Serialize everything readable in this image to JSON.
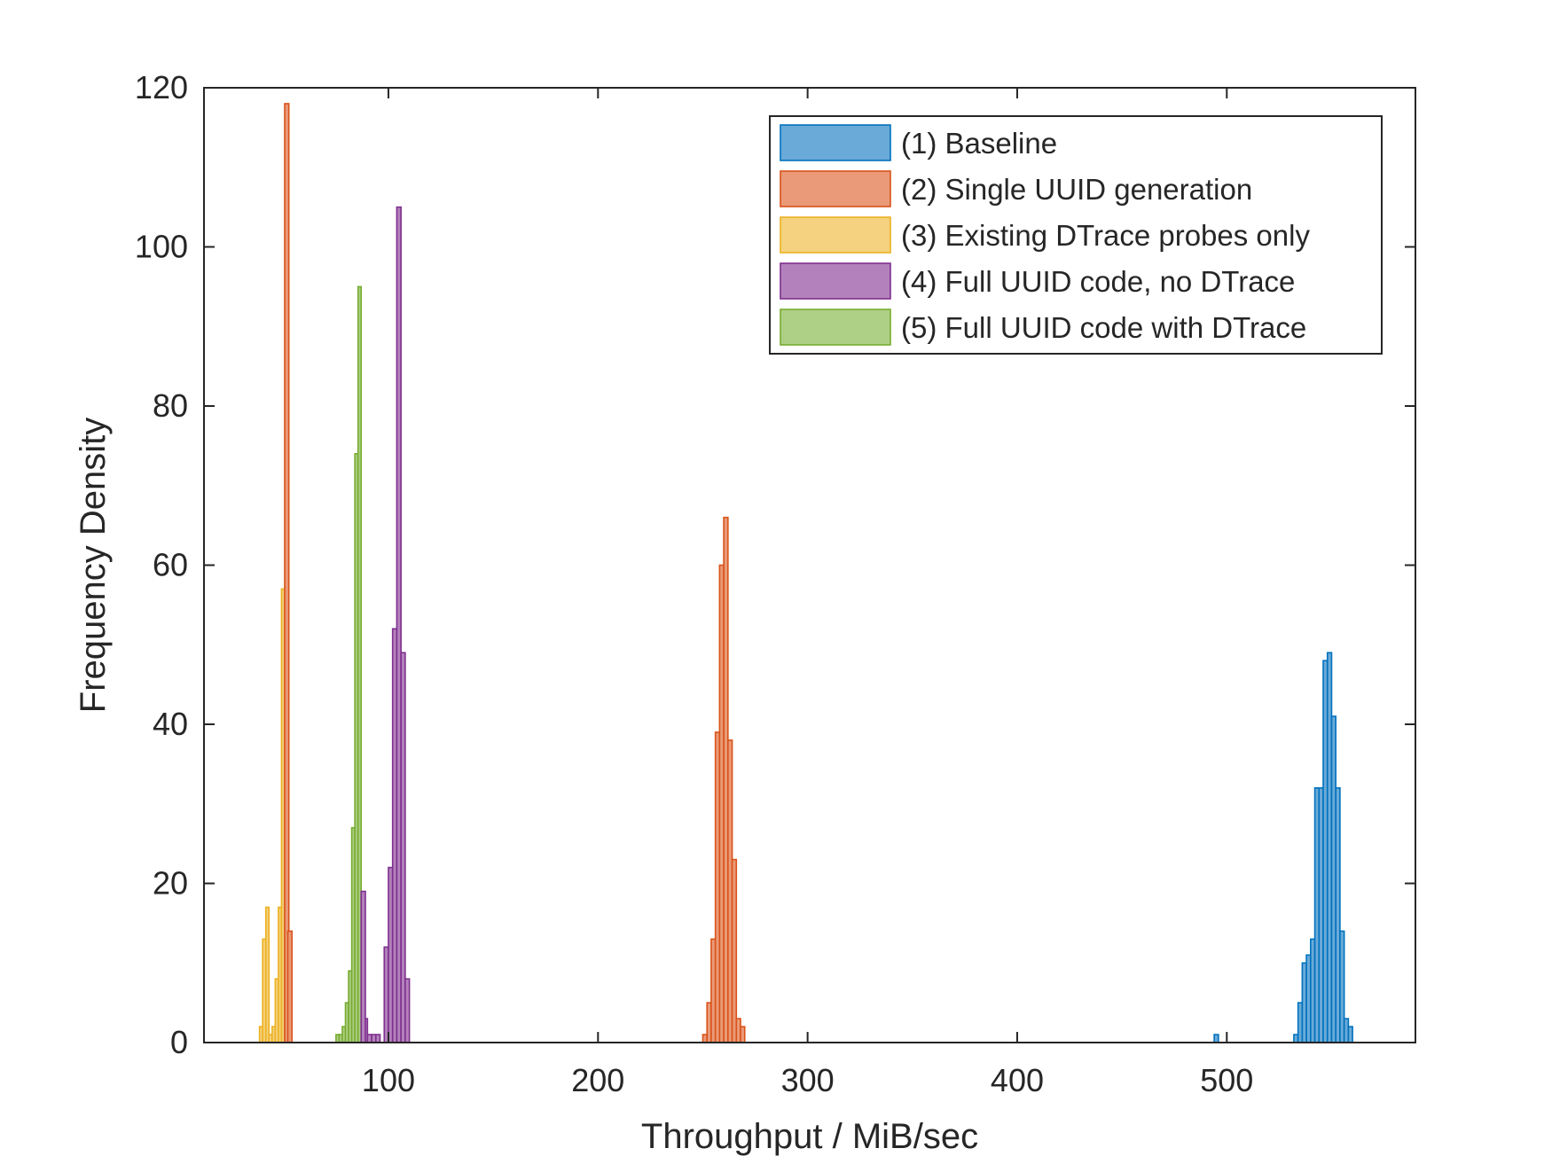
{
  "chart_data": {
    "type": "histogram",
    "title": "",
    "xlabel": "Throughput / MiB/sec",
    "ylabel": "Frequency Density",
    "xlim": [
      12,
      590
    ],
    "ylim": [
      0,
      120
    ],
    "x_ticks": [
      100,
      200,
      300,
      400,
      500
    ],
    "y_ticks": [
      0,
      20,
      40,
      60,
      80,
      100,
      120
    ],
    "grid": false,
    "legend_position": "top-right",
    "series": [
      {
        "name": "(1) Baseline",
        "edge_color": "#0072BD",
        "face_color": "#6AAAD8",
        "bin_width": 2,
        "x": [
          494,
          496,
          498,
          500,
          502,
          504,
          506,
          508,
          510,
          512,
          514,
          516,
          518,
          520,
          522,
          524,
          526,
          528,
          530,
          532,
          534,
          536,
          538,
          540,
          542,
          544,
          546,
          548,
          550,
          552,
          554,
          556,
          558,
          560,
          562,
          564,
          566
        ],
        "values": [
          1,
          0,
          0,
          0,
          0,
          0,
          0,
          0,
          0,
          0,
          0,
          0,
          0,
          0,
          0,
          0,
          0,
          0,
          0,
          1,
          5,
          10,
          11,
          13,
          32,
          32,
          48,
          49,
          41,
          32,
          14,
          3,
          2,
          0,
          0,
          0,
          0
        ]
      },
      {
        "name": "(2) Single UUID generation",
        "edge_color": "#D95319",
        "face_color": "#EA9A78",
        "bin_width": 2,
        "x": [
          250,
          252,
          254,
          256,
          258,
          260,
          262,
          264,
          266,
          268
        ],
        "values": [
          1,
          5,
          13,
          39,
          60,
          66,
          38,
          23,
          3,
          2
        ]
      },
      {
        "name": "(3) Existing DTrace probes only",
        "edge_color": "#EDB120",
        "face_color": "#F4D27F",
        "bin_width": 1.5,
        "x": [
          38.5,
          40,
          41.5,
          43,
          44.5,
          46,
          47.5,
          49
        ],
        "values": [
          2,
          13,
          17,
          1,
          2,
          8,
          17,
          57
        ]
      },
      {
        "name": "(4) Full UUID code, no DTrace",
        "edge_color": "#7E2F8E",
        "face_color": "#B382BC",
        "bin_width": 2,
        "x": [
          88,
          90,
          92,
          94,
          96,
          98,
          100,
          102,
          104,
          106,
          108
        ],
        "values": [
          3,
          1,
          1,
          1,
          0,
          12,
          22,
          52,
          105,
          49,
          8
        ]
      },
      {
        "name": "(5) Full UUID code with DTrace",
        "edge_color": "#77AC30",
        "face_color": "#AECF86",
        "bin_width": 1.5,
        "x": [
          75,
          76.5,
          78,
          79.5,
          81,
          82.5,
          84,
          85.5
        ],
        "values": [
          1,
          1,
          2,
          5,
          9,
          27,
          74,
          95
        ]
      }
    ],
    "extra_bars": [
      {
        "series": 2,
        "x": [
          50.5,
          52
        ],
        "values": [
          118,
          14
        ]
      },
      {
        "series": 4,
        "x": [
          87
        ],
        "values": [
          19
        ]
      }
    ]
  }
}
